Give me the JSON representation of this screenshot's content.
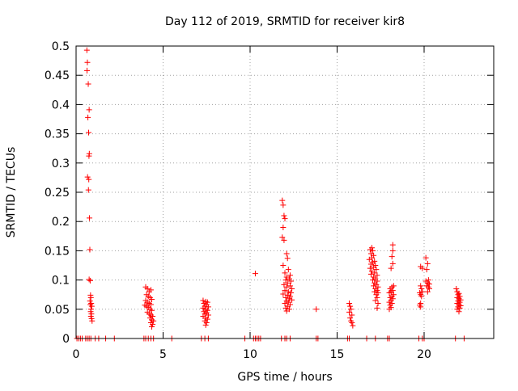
{
  "chart_data": {
    "type": "scatter",
    "title": "Day 112 of 2019, SRMTID for receiver kir8",
    "xlabel": "GPS time / hours",
    "ylabel": "SRMTID / TECUs",
    "xlim": [
      0,
      24
    ],
    "ylim": [
      0,
      0.5
    ],
    "xticks": [
      0,
      5,
      10,
      15,
      20
    ],
    "yticks": [
      0,
      0.05,
      0.1,
      0.15,
      0.2,
      0.25,
      0.3,
      0.35,
      0.4,
      0.45,
      0.5
    ],
    "ytick_labels": [
      "0",
      "0.05",
      "0.1",
      "0.15",
      "0.2",
      "0.25",
      "0.3",
      "0.35",
      "0.4",
      "0.45",
      "0.5"
    ],
    "grid": true,
    "marker": "+",
    "marker_color": "#ff0000",
    "series": [
      {
        "name": "SRMTID",
        "points": [
          [
            0.05,
            0
          ],
          [
            0.15,
            0
          ],
          [
            0.25,
            0
          ],
          [
            0.35,
            0
          ],
          [
            0.55,
            0
          ],
          [
            0.65,
            0
          ],
          [
            0.75,
            0
          ],
          [
            0.85,
            0
          ],
          [
            1.1,
            0
          ],
          [
            1.3,
            0
          ],
          [
            1.7,
            0
          ],
          [
            2.2,
            0
          ],
          [
            3.9,
            0
          ],
          [
            4.0,
            0
          ],
          [
            4.15,
            0
          ],
          [
            4.3,
            0
          ],
          [
            4.45,
            0
          ],
          [
            5.5,
            0
          ],
          [
            7.2,
            0
          ],
          [
            7.4,
            0
          ],
          [
            7.6,
            0
          ],
          [
            9.7,
            0
          ],
          [
            10.2,
            0
          ],
          [
            10.3,
            0
          ],
          [
            10.4,
            0
          ],
          [
            10.5,
            0
          ],
          [
            10.6,
            0
          ],
          [
            11.8,
            0
          ],
          [
            12.0,
            0
          ],
          [
            12.1,
            0
          ],
          [
            12.3,
            0
          ],
          [
            13.8,
            0
          ],
          [
            13.9,
            0
          ],
          [
            15.6,
            0
          ],
          [
            15.7,
            0
          ],
          [
            16.7,
            0
          ],
          [
            17.2,
            0
          ],
          [
            17.9,
            0
          ],
          [
            18.0,
            0
          ],
          [
            19.7,
            0
          ],
          [
            19.9,
            0
          ],
          [
            20.0,
            0
          ],
          [
            21.8,
            0
          ],
          [
            22.3,
            0
          ],
          [
            0.62,
            0.493
          ],
          [
            0.65,
            0.472
          ],
          [
            0.63,
            0.458
          ],
          [
            0.7,
            0.435
          ],
          [
            0.75,
            0.391
          ],
          [
            0.68,
            0.378
          ],
          [
            0.72,
            0.352
          ],
          [
            0.76,
            0.316
          ],
          [
            0.74,
            0.312
          ],
          [
            0.66,
            0.276
          ],
          [
            0.73,
            0.272
          ],
          [
            0.71,
            0.254
          ],
          [
            0.77,
            0.206
          ],
          [
            0.79,
            0.152
          ],
          [
            0.75,
            0.101
          ],
          [
            0.81,
            0.099
          ],
          [
            0.83,
            0.074
          ],
          [
            0.85,
            0.07
          ],
          [
            0.8,
            0.064
          ],
          [
            0.87,
            0.06
          ],
          [
            0.82,
            0.058
          ],
          [
            0.9,
            0.055
          ],
          [
            0.86,
            0.05
          ],
          [
            0.84,
            0.046
          ],
          [
            0.88,
            0.042
          ],
          [
            0.85,
            0.038
          ],
          [
            0.89,
            0.034
          ],
          [
            0.92,
            0.03
          ],
          [
            4.0,
            0.088
          ],
          [
            4.1,
            0.085
          ],
          [
            4.3,
            0.083
          ],
          [
            4.2,
            0.08
          ],
          [
            4.05,
            0.075
          ],
          [
            4.15,
            0.072
          ],
          [
            4.25,
            0.07
          ],
          [
            4.35,
            0.067
          ],
          [
            4.0,
            0.065
          ],
          [
            4.1,
            0.062
          ],
          [
            4.2,
            0.06
          ],
          [
            4.3,
            0.058
          ],
          [
            3.95,
            0.057
          ],
          [
            4.05,
            0.055
          ],
          [
            4.15,
            0.053
          ],
          [
            4.25,
            0.05
          ],
          [
            4.35,
            0.048
          ],
          [
            4.1,
            0.045
          ],
          [
            4.2,
            0.042
          ],
          [
            4.3,
            0.04
          ],
          [
            4.4,
            0.038
          ],
          [
            4.25,
            0.035
          ],
          [
            4.35,
            0.032
          ],
          [
            4.45,
            0.03
          ],
          [
            4.3,
            0.027
          ],
          [
            4.4,
            0.024
          ],
          [
            4.35,
            0.02
          ],
          [
            7.3,
            0.065
          ],
          [
            7.45,
            0.063
          ],
          [
            7.55,
            0.062
          ],
          [
            7.35,
            0.06
          ],
          [
            7.5,
            0.058
          ],
          [
            7.4,
            0.055
          ],
          [
            7.6,
            0.054
          ],
          [
            7.3,
            0.052
          ],
          [
            7.45,
            0.05
          ],
          [
            7.55,
            0.048
          ],
          [
            7.35,
            0.046
          ],
          [
            7.5,
            0.044
          ],
          [
            7.4,
            0.042
          ],
          [
            7.6,
            0.04
          ],
          [
            7.3,
            0.038
          ],
          [
            7.45,
            0.035
          ],
          [
            7.55,
            0.033
          ],
          [
            7.4,
            0.03
          ],
          [
            7.5,
            0.027
          ],
          [
            7.45,
            0.023
          ],
          [
            10.3,
            0.111
          ],
          [
            11.85,
            0.236
          ],
          [
            11.9,
            0.228
          ],
          [
            11.95,
            0.21
          ],
          [
            12.0,
            0.205
          ],
          [
            11.9,
            0.19
          ],
          [
            11.85,
            0.173
          ],
          [
            11.95,
            0.168
          ],
          [
            12.1,
            0.145
          ],
          [
            12.15,
            0.137
          ],
          [
            11.9,
            0.125
          ],
          [
            12.2,
            0.118
          ],
          [
            12.0,
            0.112
          ],
          [
            12.3,
            0.108
          ],
          [
            12.1,
            0.105
          ],
          [
            12.25,
            0.102
          ],
          [
            12.05,
            0.1
          ],
          [
            12.35,
            0.098
          ],
          [
            12.15,
            0.095
          ],
          [
            11.95,
            0.092
          ],
          [
            12.3,
            0.09
          ],
          [
            12.1,
            0.088
          ],
          [
            12.4,
            0.085
          ],
          [
            12.0,
            0.082
          ],
          [
            12.2,
            0.08
          ],
          [
            12.35,
            0.078
          ],
          [
            11.9,
            0.076
          ],
          [
            12.15,
            0.074
          ],
          [
            12.3,
            0.072
          ],
          [
            12.05,
            0.07
          ],
          [
            12.25,
            0.068
          ],
          [
            12.4,
            0.066
          ],
          [
            12.1,
            0.064
          ],
          [
            12.2,
            0.062
          ],
          [
            12.0,
            0.06
          ],
          [
            12.3,
            0.058
          ],
          [
            12.15,
            0.055
          ],
          [
            12.05,
            0.052
          ],
          [
            12.25,
            0.05
          ],
          [
            12.1,
            0.047
          ],
          [
            13.8,
            0.05
          ],
          [
            15.7,
            0.06
          ],
          [
            15.75,
            0.055
          ],
          [
            15.8,
            0.05
          ],
          [
            15.7,
            0.045
          ],
          [
            15.85,
            0.04
          ],
          [
            15.75,
            0.035
          ],
          [
            15.8,
            0.03
          ],
          [
            15.85,
            0.027
          ],
          [
            15.9,
            0.022
          ],
          [
            16.9,
            0.152
          ],
          [
            17.0,
            0.155
          ],
          [
            17.05,
            0.15
          ],
          [
            16.95,
            0.145
          ],
          [
            17.1,
            0.142
          ],
          [
            17.0,
            0.138
          ],
          [
            16.85,
            0.135
          ],
          [
            17.15,
            0.132
          ],
          [
            17.05,
            0.13
          ],
          [
            16.95,
            0.127
          ],
          [
            17.2,
            0.125
          ],
          [
            17.1,
            0.122
          ],
          [
            16.9,
            0.12
          ],
          [
            17.25,
            0.118
          ],
          [
            17.0,
            0.115
          ],
          [
            17.15,
            0.112
          ],
          [
            16.95,
            0.11
          ],
          [
            17.3,
            0.108
          ],
          [
            17.1,
            0.105
          ],
          [
            17.2,
            0.102
          ],
          [
            17.05,
            0.1
          ],
          [
            17.3,
            0.098
          ],
          [
            17.15,
            0.095
          ],
          [
            17.25,
            0.092
          ],
          [
            17.1,
            0.09
          ],
          [
            17.35,
            0.088
          ],
          [
            17.2,
            0.085
          ],
          [
            17.3,
            0.082
          ],
          [
            17.15,
            0.08
          ],
          [
            17.35,
            0.078
          ],
          [
            17.25,
            0.075
          ],
          [
            17.3,
            0.07
          ],
          [
            17.2,
            0.065
          ],
          [
            17.35,
            0.06
          ],
          [
            17.3,
            0.052
          ],
          [
            18.2,
            0.16
          ],
          [
            18.2,
            0.15
          ],
          [
            18.15,
            0.14
          ],
          [
            18.2,
            0.128
          ],
          [
            18.1,
            0.12
          ],
          [
            18.25,
            0.09
          ],
          [
            18.15,
            0.088
          ],
          [
            18.05,
            0.085
          ],
          [
            18.2,
            0.082
          ],
          [
            18.1,
            0.08
          ],
          [
            18.0,
            0.078
          ],
          [
            18.25,
            0.075
          ],
          [
            18.15,
            0.072
          ],
          [
            18.05,
            0.07
          ],
          [
            18.2,
            0.068
          ],
          [
            18.1,
            0.065
          ],
          [
            18.0,
            0.062
          ],
          [
            18.15,
            0.06
          ],
          [
            18.05,
            0.057
          ],
          [
            18.1,
            0.053
          ],
          [
            18.0,
            0.05
          ],
          [
            20.1,
            0.138
          ],
          [
            20.2,
            0.128
          ],
          [
            19.8,
            0.123
          ],
          [
            19.9,
            0.12
          ],
          [
            20.15,
            0.118
          ],
          [
            20.25,
            0.1
          ],
          [
            20.1,
            0.098
          ],
          [
            20.2,
            0.095
          ],
          [
            20.3,
            0.093
          ],
          [
            20.15,
            0.09
          ],
          [
            20.25,
            0.088
          ],
          [
            20.3,
            0.085
          ],
          [
            20.2,
            0.08
          ],
          [
            19.8,
            0.09
          ],
          [
            19.85,
            0.085
          ],
          [
            19.9,
            0.08
          ],
          [
            19.75,
            0.078
          ],
          [
            19.8,
            0.075
          ],
          [
            19.85,
            0.072
          ],
          [
            19.8,
            0.06
          ],
          [
            19.75,
            0.057
          ],
          [
            19.8,
            0.054
          ],
          [
            21.85,
            0.085
          ],
          [
            21.9,
            0.08
          ],
          [
            22.0,
            0.077
          ],
          [
            21.95,
            0.075
          ],
          [
            22.05,
            0.072
          ],
          [
            21.9,
            0.07
          ],
          [
            22.0,
            0.068
          ],
          [
            22.1,
            0.066
          ],
          [
            21.95,
            0.064
          ],
          [
            22.05,
            0.062
          ],
          [
            21.9,
            0.06
          ],
          [
            22.0,
            0.058
          ],
          [
            22.1,
            0.056
          ],
          [
            21.95,
            0.054
          ],
          [
            22.05,
            0.052
          ],
          [
            21.9,
            0.05
          ],
          [
            22.0,
            0.046
          ]
        ]
      }
    ]
  }
}
